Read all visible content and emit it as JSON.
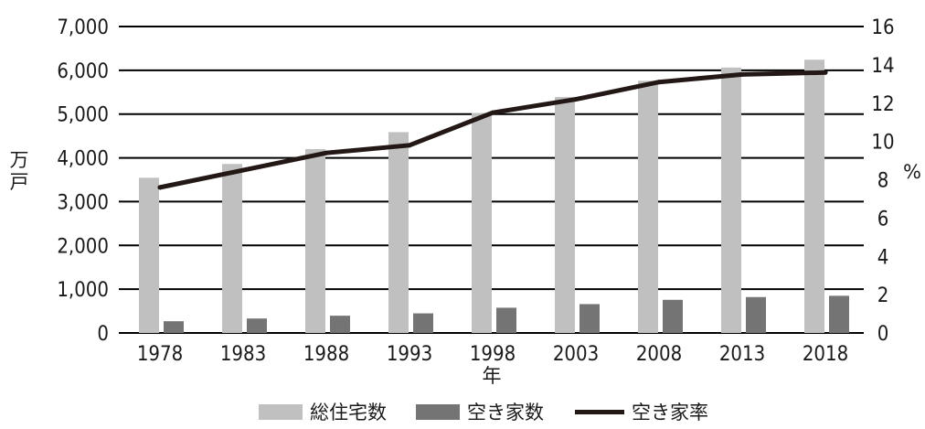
{
  "chart_data": {
    "type": "bar",
    "categories": [
      "1978",
      "1983",
      "1988",
      "1993",
      "1998",
      "2003",
      "2008",
      "2013",
      "2018"
    ],
    "series": [
      {
        "name": "総住宅数",
        "type": "bar",
        "axis": "left",
        "color": "#c0c0c0",
        "values": [
          3545,
          3861,
          4201,
          4588,
          5025,
          5389,
          5759,
          6063,
          6242
        ]
      },
      {
        "name": "空き家数",
        "type": "bar",
        "axis": "left",
        "color": "#747474",
        "values": [
          268,
          330,
          394,
          448,
          576,
          659,
          757,
          820,
          849
        ]
      },
      {
        "name": "空き家率",
        "type": "line",
        "axis": "right",
        "color": "#231815",
        "values": [
          7.6,
          8.5,
          9.4,
          9.8,
          11.5,
          12.2,
          13.1,
          13.5,
          13.6
        ]
      }
    ],
    "xlabel": "年",
    "ylabel": "万戸",
    "y2label": "%",
    "ylim": [
      0,
      7000
    ],
    "y2lim": [
      0,
      16
    ],
    "yticks": [
      "0",
      "1,000",
      "2,000",
      "3,000",
      "4,000",
      "5,000",
      "6,000",
      "7,000"
    ],
    "y2ticks": [
      "0",
      "2",
      "4",
      "6",
      "8",
      "10",
      "12",
      "14",
      "16"
    ],
    "grid": true,
    "legend_position": "bottom"
  }
}
